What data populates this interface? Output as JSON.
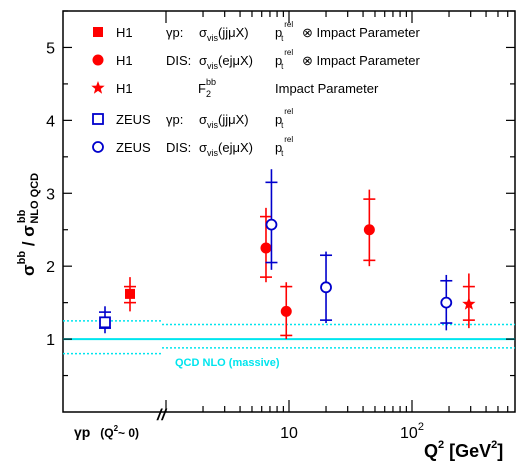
{
  "chart_data": {
    "type": "scatter",
    "ylabel_main": "σ",
    "ylabel_sup1": "bb",
    "ylabel_mid": " / σ",
    "ylabel_sup2": "bb",
    "ylabel_sub2": "NLO QCD",
    "xlabel_base": "Q",
    "xlabel_exp": "2",
    "xlabel_unit": " [GeV",
    "xlabel_unit_exp": "2",
    "xlabel_close": "]",
    "ylim": [
      0,
      5.5
    ],
    "yticks": [
      1,
      2,
      3,
      4,
      5
    ],
    "log_x": true,
    "xticks": [
      {
        "value": 10,
        "label": "10"
      },
      {
        "value": 100,
        "label": "10",
        "exp": "2"
      }
    ],
    "gp_label": {
      "main": "γp",
      "paren": "(Q",
      "exp": "2",
      "rest": "~ 0)"
    },
    "axis_break": "//",
    "colors": {
      "h1": "#ff0000",
      "zeus": "#0000cc",
      "nlo": "#00e5ee"
    },
    "nlo": {
      "label": "QCD NLO (massive)",
      "central": 1.0,
      "band_gp": [
        0.8,
        1.25
      ],
      "band_dis": [
        0.88,
        1.2
      ]
    },
    "legend": [
      {
        "marker": "square-filled",
        "color": "#ff0000",
        "exp": "H1",
        "proc": "γp:",
        "obs": "σ",
        "obs_sub": "vis",
        "obs_rest": "(jjμX)",
        "p": "p",
        "p_sup": "rel",
        "p_sub": "t",
        "extra": "⊗ Impact Parameter"
      },
      {
        "marker": "circle-filled",
        "color": "#ff0000",
        "exp": "H1",
        "proc": "DIS:",
        "obs": "σ",
        "obs_sub": "vis",
        "obs_rest": "(ejμX)",
        "p": "p",
        "p_sup": "rel",
        "p_sub": "t",
        "extra": "⊗ Impact Parameter"
      },
      {
        "marker": "star-filled",
        "color": "#ff0000",
        "exp": "H1",
        "proc": "",
        "obs": "F",
        "obs_sub": "2",
        "obs_sup": "bb",
        "obs_rest": "",
        "p": "",
        "p_sup": "",
        "p_sub": "",
        "extra": "Impact Parameter"
      },
      {
        "marker": "square-open",
        "color": "#0000cc",
        "exp": "ZEUS",
        "proc": "γp:",
        "obs": "σ",
        "obs_sub": "vis",
        "obs_rest": "(jjμX)",
        "p": "p",
        "p_sup": "rel",
        "p_sub": "t",
        "extra": ""
      },
      {
        "marker": "circle-open",
        "color": "#0000cc",
        "exp": "ZEUS",
        "proc": "DIS:",
        "obs": "σ",
        "obs_sub": "vis",
        "obs_rest": "(ejμX)",
        "p": "p",
        "p_sup": "rel",
        "p_sub": "t",
        "extra": ""
      }
    ],
    "series": [
      {
        "name": "H1 γp",
        "marker": "square-filled",
        "color": "#ff0000",
        "points": [
          {
            "x": "γp",
            "y": 1.62,
            "stat": [
              1.5,
              1.72
            ],
            "tot": [
              1.38,
              1.85
            ]
          }
        ]
      },
      {
        "name": "H1 DIS",
        "marker": "circle-filled",
        "color": "#ff0000",
        "points": [
          {
            "x": 6.5,
            "y": 2.25,
            "stat": [
              1.85,
              2.68
            ],
            "tot": [
              1.78,
              2.8
            ]
          },
          {
            "x": 9.5,
            "y": 1.38,
            "stat": [
              1.05,
              1.72
            ],
            "tot": [
              1.0,
              1.78
            ]
          },
          {
            "x": 45,
            "y": 2.5,
            "stat": [
              2.08,
              2.92
            ],
            "tot": [
              2.0,
              3.05
            ]
          }
        ]
      },
      {
        "name": "H1 F2bb",
        "marker": "star-filled",
        "color": "#ff0000",
        "points": [
          {
            "x": 290,
            "y": 1.48,
            "stat": [
              1.26,
              1.72
            ],
            "tot": [
              1.15,
              1.9
            ]
          }
        ]
      },
      {
        "name": "ZEUS γp",
        "marker": "square-open",
        "color": "#0000cc",
        "points": [
          {
            "x": "γp",
            "y": 1.23,
            "stat": [
              1.15,
              1.37
            ],
            "tot": [
              1.08,
              1.45
            ]
          }
        ]
      },
      {
        "name": "ZEUS DIS",
        "marker": "circle-open",
        "color": "#0000cc",
        "points": [
          {
            "x": 7.2,
            "y": 2.57,
            "stat": [
              2.05,
              3.15
            ],
            "tot": [
              1.95,
              3.33
            ]
          },
          {
            "x": 20,
            "y": 1.71,
            "stat": [
              1.26,
              2.15
            ],
            "tot": [
              1.22,
              2.2
            ]
          },
          {
            "x": 190,
            "y": 1.5,
            "stat": [
              1.22,
              1.8
            ],
            "tot": [
              1.12,
              1.88
            ]
          }
        ]
      }
    ]
  }
}
